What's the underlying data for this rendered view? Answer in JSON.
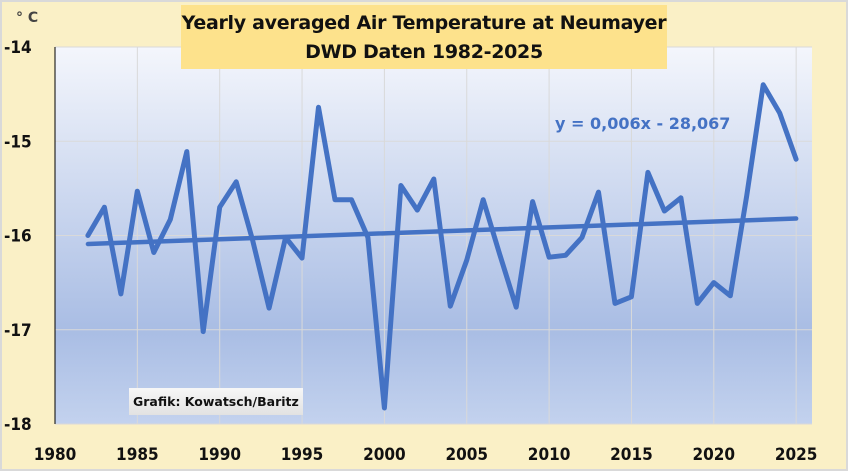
{
  "chart_data": {
    "type": "line",
    "title": "Yearly averaged Air Temperature at Neumayer",
    "subtitle": "DWD Daten 1982-2025",
    "ylabel": "° C",
    "xlabel": "",
    "xlim": [
      1980,
      2026
    ],
    "ylim": [
      -18,
      -14
    ],
    "x_ticks": [
      1980,
      1985,
      1990,
      1995,
      2000,
      2005,
      2010,
      2015,
      2020,
      2025
    ],
    "y_ticks": [
      -14,
      -15,
      -16,
      -17,
      -18
    ],
    "grid": true,
    "line_color": "#4472c4",
    "series": [
      {
        "name": "Yearly averaged Air Temperature",
        "x": [
          1982,
          1983,
          1984,
          1985,
          1986,
          1987,
          1988,
          1989,
          1990,
          1991,
          1992,
          1993,
          1994,
          1995,
          1996,
          1997,
          1998,
          1999,
          2000,
          2001,
          2002,
          2003,
          2004,
          2005,
          2006,
          2007,
          2008,
          2009,
          2010,
          2011,
          2012,
          2013,
          2014,
          2015,
          2016,
          2017,
          2018,
          2019,
          2020,
          2021,
          2022,
          2023,
          2024,
          2025
        ],
        "values": [
          -16.0,
          -15.7,
          -16.62,
          -15.53,
          -16.18,
          -15.83,
          -15.11,
          -17.02,
          -15.7,
          -15.43,
          -16.05,
          -16.77,
          -16.02,
          -16.24,
          -14.64,
          -15.62,
          -15.62,
          -16.02,
          -17.83,
          -15.47,
          -15.73,
          -15.4,
          -16.75,
          -16.26,
          -15.62,
          -16.2,
          -16.76,
          -15.64,
          -16.23,
          -16.21,
          -16.02,
          -15.54,
          -16.72,
          -16.65,
          -15.33,
          -15.74,
          -15.6,
          -16.72,
          -16.5,
          -16.64,
          -15.58,
          -14.4,
          -14.7,
          -15.19
        ]
      }
    ],
    "trendline": {
      "label": "y = 0,006x - 28,067",
      "x": [
        1982,
        2025
      ],
      "values": [
        -16.09,
        -15.82
      ]
    },
    "annotations": [
      "Grafik: Kowatsch/Baritz"
    ]
  }
}
